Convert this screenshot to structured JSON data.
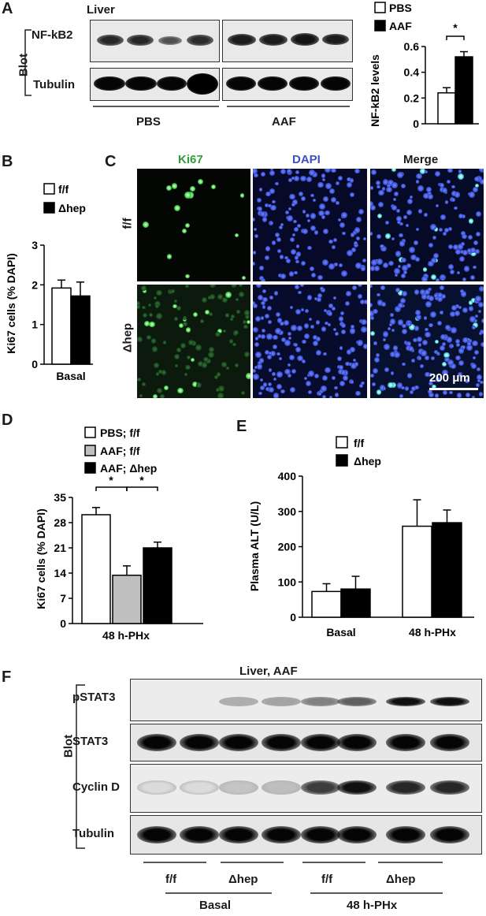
{
  "panelA": {
    "letter": "A",
    "tissue": "Liver",
    "blot_label": "Blot",
    "rows": [
      "NF-kB2",
      "Tubulin"
    ],
    "groups": [
      "PBS",
      "AAF"
    ],
    "chart_data": {
      "type": "bar",
      "categories": [
        "PBS",
        "AAF"
      ],
      "values": [
        0.24,
        0.52
      ],
      "errors": [
        0.04,
        0.04
      ],
      "ylabel": "NF-kB2 levels",
      "ylim": [
        0,
        0.6
      ],
      "yticks": [
        "0",
        "0.2",
        "0.4",
        "0.6"
      ],
      "legend": [
        "PBS",
        "AAF"
      ],
      "colors": [
        "#ffffff",
        "#000000"
      ],
      "significance": "*"
    }
  },
  "panelB": {
    "letter": "B",
    "chart_data": {
      "type": "bar",
      "categories": [
        "Basal"
      ],
      "series": [
        {
          "name": "f/f",
          "values": [
            1.92
          ],
          "errors": [
            0.2
          ],
          "color": "#ffffff"
        },
        {
          "name": "Δhep",
          "values": [
            1.72
          ],
          "errors": [
            0.35
          ],
          "color": "#000000"
        }
      ],
      "ylabel": "Ki67 cells (% DAPI)",
      "ylim": [
        0,
        3
      ],
      "yticks": [
        "0",
        "1",
        "2",
        "3"
      ]
    }
  },
  "panelC": {
    "letter": "C",
    "columns": [
      "Ki67",
      "DAPI",
      "Merge"
    ],
    "rows": [
      "f/f",
      "Δhep"
    ],
    "scale_bar": "200 μm",
    "colors": {
      "ki67": "#2e9e3a",
      "dapi": "#3a4fc8"
    }
  },
  "panelD": {
    "letter": "D",
    "chart_data": {
      "type": "bar",
      "categories": [
        "PBS; f/f",
        "AAF; f/f",
        "AAF; Δhep"
      ],
      "values": [
        30.2,
        13.4,
        21.0
      ],
      "errors": [
        2.0,
        2.6,
        1.6
      ],
      "colors": [
        "#ffffff",
        "#c0c0c0",
        "#000000"
      ],
      "legend": [
        "PBS; f/f",
        "AAF; f/f",
        "AAF; Δhep"
      ],
      "ylabel": "Ki67 cells (% DAPI)",
      "xlabel": "48 h-PHx",
      "ylim": [
        0,
        35
      ],
      "yticks": [
        "0",
        "7",
        "14",
        "21",
        "28",
        "35"
      ],
      "significance": [
        "*",
        "*"
      ]
    }
  },
  "panelE": {
    "letter": "E",
    "chart_data": {
      "type": "bar",
      "categories": [
        "Basal",
        "48 h-PHx"
      ],
      "series": [
        {
          "name": "f/f",
          "values": [
            73,
            258
          ],
          "errors": [
            22,
            75
          ],
          "color": "#ffffff"
        },
        {
          "name": "Δhep",
          "values": [
            80,
            268
          ],
          "errors": [
            36,
            36
          ],
          "color": "#000000"
        }
      ],
      "ylabel": "Plasma ALT (U/L)",
      "ylim": [
        0,
        400
      ],
      "yticks": [
        "0",
        "100",
        "200",
        "300",
        "400"
      ]
    }
  },
  "panelF": {
    "letter": "F",
    "title": "Liver, AAF",
    "blot_label": "Blot",
    "rows": [
      "pSTAT3",
      "STAT3",
      "Cyclin D",
      "Tubulin"
    ],
    "genotypes": [
      "f/f",
      "Δhep",
      "f/f",
      "Δhep"
    ],
    "conditions": [
      "Basal",
      "48 h-PHx"
    ]
  }
}
